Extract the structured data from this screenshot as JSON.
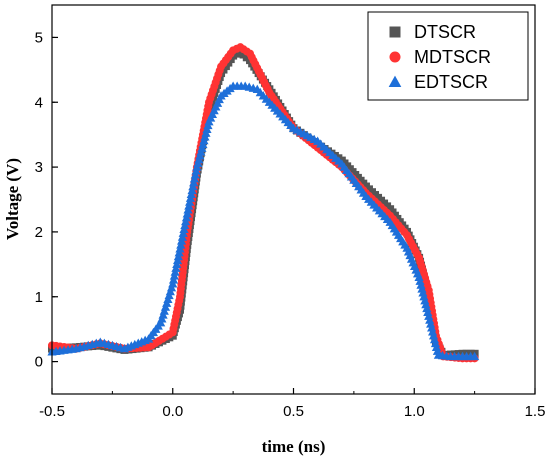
{
  "chart_data": {
    "type": "scatter",
    "xlabel": "time (ns)",
    "ylabel": "Voltage (V)",
    "xlim": [
      -0.5,
      1.5
    ],
    "ylim": [
      -0.5,
      5.5
    ],
    "xticks": [
      -0.5,
      0.0,
      0.5,
      1.0,
      1.5
    ],
    "xtick_labels": [
      "-0.5",
      "0.0",
      "0.5",
      "1.0",
      "1.5"
    ],
    "yticks": [
      0,
      1,
      2,
      3,
      4,
      5
    ],
    "ytick_labels": [
      "0",
      "1",
      "2",
      "3",
      "4",
      "5"
    ],
    "grid": false,
    "legend_position": "top-right",
    "series": [
      {
        "name": "DTSCR",
        "marker": "square",
        "color": "#555555",
        "points": [
          [
            -0.5,
            0.2
          ],
          [
            -0.4,
            0.22
          ],
          [
            -0.3,
            0.25
          ],
          [
            -0.2,
            0.18
          ],
          [
            -0.1,
            0.22
          ],
          [
            0.0,
            0.4
          ],
          [
            0.03,
            0.8
          ],
          [
            0.06,
            1.8
          ],
          [
            0.1,
            2.9
          ],
          [
            0.15,
            3.9
          ],
          [
            0.2,
            4.45
          ],
          [
            0.25,
            4.72
          ],
          [
            0.28,
            4.78
          ],
          [
            0.32,
            4.65
          ],
          [
            0.4,
            4.2
          ],
          [
            0.5,
            3.6
          ],
          [
            0.6,
            3.35
          ],
          [
            0.7,
            3.1
          ],
          [
            0.8,
            2.7
          ],
          [
            0.9,
            2.35
          ],
          [
            0.97,
            2.0
          ],
          [
            1.02,
            1.6
          ],
          [
            1.06,
            1.0
          ],
          [
            1.09,
            0.3
          ],
          [
            1.12,
            0.1
          ],
          [
            1.2,
            0.12
          ],
          [
            1.25,
            0.12
          ]
        ]
      },
      {
        "name": "MDTSCR",
        "marker": "circle",
        "color": "#ff3333",
        "points": [
          [
            -0.5,
            0.25
          ],
          [
            -0.4,
            0.2
          ],
          [
            -0.3,
            0.28
          ],
          [
            -0.2,
            0.2
          ],
          [
            -0.1,
            0.22
          ],
          [
            0.0,
            0.45
          ],
          [
            0.03,
            1.0
          ],
          [
            0.06,
            2.0
          ],
          [
            0.1,
            3.0
          ],
          [
            0.15,
            4.0
          ],
          [
            0.2,
            4.55
          ],
          [
            0.25,
            4.8
          ],
          [
            0.28,
            4.85
          ],
          [
            0.32,
            4.75
          ],
          [
            0.4,
            4.15
          ],
          [
            0.5,
            3.6
          ],
          [
            0.6,
            3.3
          ],
          [
            0.7,
            3.0
          ],
          [
            0.8,
            2.6
          ],
          [
            0.9,
            2.25
          ],
          [
            0.97,
            1.95
          ],
          [
            1.02,
            1.6
          ],
          [
            1.06,
            1.1
          ],
          [
            1.09,
            0.4
          ],
          [
            1.12,
            0.08
          ],
          [
            1.2,
            0.05
          ],
          [
            1.25,
            0.05
          ]
        ]
      },
      {
        "name": "EDTSCR",
        "marker": "triangle",
        "color": "#1e6fd9",
        "points": [
          [
            -0.5,
            0.15
          ],
          [
            -0.4,
            0.2
          ],
          [
            -0.3,
            0.3
          ],
          [
            -0.2,
            0.2
          ],
          [
            -0.1,
            0.35
          ],
          [
            -0.05,
            0.6
          ],
          [
            0.0,
            1.2
          ],
          [
            0.05,
            2.1
          ],
          [
            0.1,
            3.0
          ],
          [
            0.15,
            3.7
          ],
          [
            0.2,
            4.1
          ],
          [
            0.25,
            4.25
          ],
          [
            0.3,
            4.25
          ],
          [
            0.35,
            4.2
          ],
          [
            0.4,
            4.0
          ],
          [
            0.5,
            3.6
          ],
          [
            0.6,
            3.4
          ],
          [
            0.7,
            3.05
          ],
          [
            0.8,
            2.55
          ],
          [
            0.9,
            2.15
          ],
          [
            0.97,
            1.75
          ],
          [
            1.02,
            1.3
          ],
          [
            1.06,
            0.7
          ],
          [
            1.1,
            0.1
          ],
          [
            1.15,
            0.08
          ],
          [
            1.2,
            0.08
          ],
          [
            1.25,
            0.08
          ]
        ]
      }
    ]
  }
}
